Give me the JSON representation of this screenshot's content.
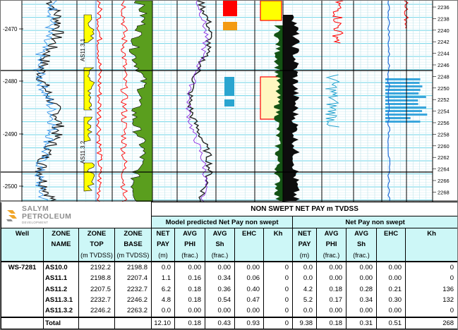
{
  "log": {
    "depth_axis_labels": [
      "-2470",
      "-2480",
      "-2490",
      "-2500"
    ],
    "right_axis_labels": [
      "2236",
      "2238",
      "2240",
      "2242",
      "2244",
      "2246",
      "2248",
      "2250",
      "2252",
      "2254",
      "2256",
      "2258",
      "2260",
      "2262",
      "2264",
      "2266",
      "2268"
    ],
    "zone_labels": [
      "AS11.3.1",
      "AS11.3.2"
    ]
  },
  "logo": {
    "line1": "SALYM",
    "line2": "PETROLEUM",
    "line3": "DEVELOPMENT"
  },
  "table": {
    "title": "NON SWEPT NET PAY m TVDSS",
    "group_model": "Model predicted Net Pay non swept",
    "group_actual": "Net Pay non swept",
    "col_headers": {
      "well": "Well",
      "zone_name": [
        "ZONE",
        "NAME"
      ],
      "zone_top": [
        "ZONE",
        "TOP",
        "(m TVDSS)"
      ],
      "zone_base": [
        "ZONE",
        "BASE",
        "(m TVDSS)"
      ],
      "net_pay": [
        "NET",
        "PAY",
        "(m)"
      ],
      "avg_phi": [
        "AVG",
        "PHI",
        "(frac.)"
      ],
      "avg_sh": [
        "AVG",
        "Sh",
        "(frac.)"
      ],
      "ehc": "EHC",
      "kh": "Kh"
    },
    "well_name": "WS-7281",
    "rows": [
      {
        "zone": "AS10.0",
        "top": "2192.2",
        "base": "2198.8",
        "m_netpay": "0.0",
        "m_phi": "0.00",
        "m_sh": "0.00",
        "m_ehc": "0.00",
        "m_kh": "0",
        "a_netpay": "0.0",
        "a_phi": "0.00",
        "a_sh": "0.00",
        "a_ehc": "0.00",
        "a_kh": "0"
      },
      {
        "zone": "AS11.1",
        "top": "2198.8",
        "base": "2207.4",
        "m_netpay": "1.1",
        "m_phi": "0.16",
        "m_sh": "0.34",
        "m_ehc": "0.06",
        "m_kh": "0",
        "a_netpay": "0.0",
        "a_phi": "0.00",
        "a_sh": "0.00",
        "a_ehc": "0.00",
        "a_kh": "0"
      },
      {
        "zone": "AS11.2",
        "top": "2207.5",
        "base": "2232.7",
        "m_netpay": "6.2",
        "m_phi": "0.18",
        "m_sh": "0.36",
        "m_ehc": "0.40",
        "m_kh": "0",
        "a_netpay": "4.2",
        "a_phi": "0.18",
        "a_sh": "0.28",
        "a_ehc": "0.21",
        "a_kh": "136"
      },
      {
        "zone": "AS11.3.1",
        "top": "2232.7",
        "base": "2246.2",
        "m_netpay": "4.8",
        "m_phi": "0.18",
        "m_sh": "0.54",
        "m_ehc": "0.47",
        "m_kh": "0",
        "a_netpay": "5.2",
        "a_phi": "0.17",
        "a_sh": "0.34",
        "a_ehc": "0.30",
        "a_kh": "132"
      },
      {
        "zone": "AS11.3.2",
        "top": "2246.2",
        "base": "2263.2",
        "m_netpay": "0.0",
        "m_phi": "0.00",
        "m_sh": "0.00",
        "m_ehc": "0.00",
        "m_kh": "0",
        "a_netpay": "0.0",
        "a_phi": "0.00",
        "a_sh": "0.00",
        "a_ehc": "0.00",
        "a_kh": "0"
      }
    ],
    "total": {
      "label": "Total",
      "m_netpay": "12.10",
      "m_phi": "0.18",
      "m_sh": "0.43",
      "m_ehc": "0.93",
      "m_kh": "0",
      "a_netpay": "9.38",
      "a_phi": "0.18",
      "a_sh": "0.31",
      "a_ehc": "0.51",
      "a_kh": "268"
    }
  },
  "colors": {
    "header_cyan": "#cdf7f7",
    "grid_cyan": "#58d0e6",
    "sand_yellow": "#ffff00",
    "shale_green": "#5a9e1e",
    "dark_green": "#145214",
    "red": "#ff0000",
    "blue": "#1f68d6"
  }
}
